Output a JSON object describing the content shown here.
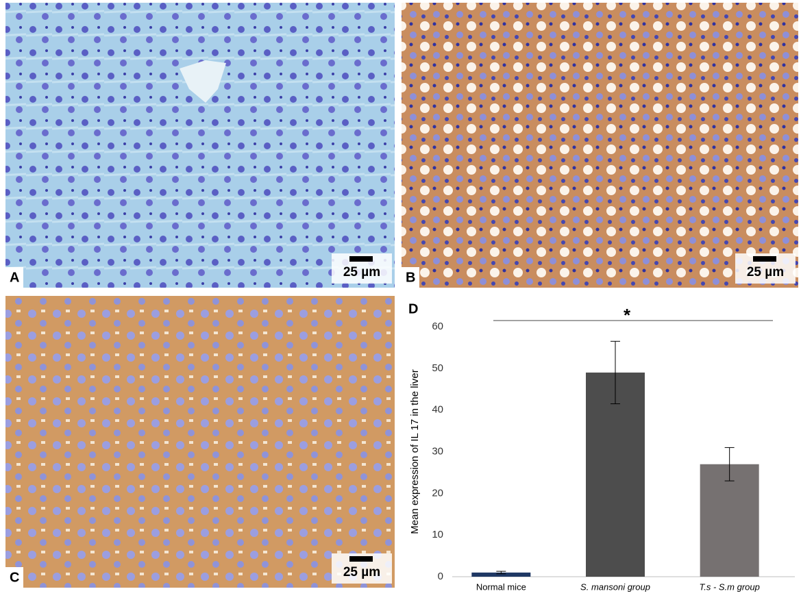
{
  "panels": [
    {
      "label": "A",
      "scale": "25 µm"
    },
    {
      "label": "B",
      "scale": "25 µm"
    },
    {
      "label": "C",
      "scale": "25 µm"
    }
  ],
  "chart_data": {
    "type": "bar",
    "label": "D",
    "y_label": "Mean expression of IL 17 in the liver",
    "categories": [
      "Normal mice",
      "S. mansoni group",
      "T.s - S.m group"
    ],
    "values": [
      1,
      49,
      27
    ],
    "errors": [
      0.3,
      7.5,
      4
    ],
    "colors": [
      "#1f3864",
      "#4d4d4d",
      "#767171"
    ],
    "ylim": [
      0,
      60
    ],
    "yticks": [
      0,
      10,
      20,
      30,
      40,
      50,
      60
    ],
    "significance": "*"
  }
}
